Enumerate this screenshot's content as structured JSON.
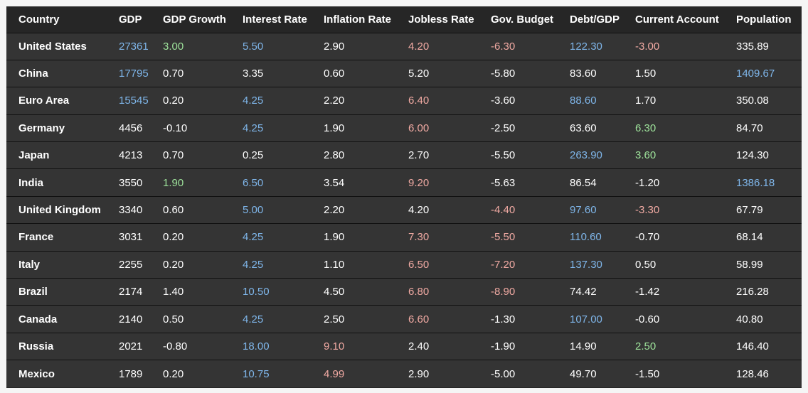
{
  "colors": {
    "blue": "#7fb6ea",
    "green": "#9ee39b",
    "red": "#f1aaa3",
    "white": "#ffffff"
  },
  "table": {
    "headers": [
      "Country",
      "GDP",
      "GDP Growth",
      "Interest Rate",
      "Inflation Rate",
      "Jobless Rate",
      "Gov. Budget",
      "Debt/GDP",
      "Current Account",
      "Population"
    ],
    "rows": [
      [
        {
          "v": "United States",
          "c": "white"
        },
        {
          "v": "27361",
          "c": "blue"
        },
        {
          "v": "3.00",
          "c": "green"
        },
        {
          "v": "5.50",
          "c": "blue"
        },
        {
          "v": "2.90",
          "c": "white"
        },
        {
          "v": "4.20",
          "c": "red"
        },
        {
          "v": "-6.30",
          "c": "red"
        },
        {
          "v": "122.30",
          "c": "blue"
        },
        {
          "v": "-3.00",
          "c": "red"
        },
        {
          "v": "335.89",
          "c": "white"
        }
      ],
      [
        {
          "v": "China",
          "c": "white"
        },
        {
          "v": "17795",
          "c": "blue"
        },
        {
          "v": "0.70",
          "c": "white"
        },
        {
          "v": "3.35",
          "c": "white"
        },
        {
          "v": "0.60",
          "c": "white"
        },
        {
          "v": "5.20",
          "c": "white"
        },
        {
          "v": "-5.80",
          "c": "white"
        },
        {
          "v": "83.60",
          "c": "white"
        },
        {
          "v": "1.50",
          "c": "white"
        },
        {
          "v": "1409.67",
          "c": "blue"
        }
      ],
      [
        {
          "v": "Euro Area",
          "c": "white"
        },
        {
          "v": "15545",
          "c": "blue"
        },
        {
          "v": "0.20",
          "c": "white"
        },
        {
          "v": "4.25",
          "c": "blue"
        },
        {
          "v": "2.20",
          "c": "white"
        },
        {
          "v": "6.40",
          "c": "red"
        },
        {
          "v": "-3.60",
          "c": "white"
        },
        {
          "v": "88.60",
          "c": "blue"
        },
        {
          "v": "1.70",
          "c": "white"
        },
        {
          "v": "350.08",
          "c": "white"
        }
      ],
      [
        {
          "v": "Germany",
          "c": "white"
        },
        {
          "v": "4456",
          "c": "white"
        },
        {
          "v": "-0.10",
          "c": "white"
        },
        {
          "v": "4.25",
          "c": "blue"
        },
        {
          "v": "1.90",
          "c": "white"
        },
        {
          "v": "6.00",
          "c": "red"
        },
        {
          "v": "-2.50",
          "c": "white"
        },
        {
          "v": "63.60",
          "c": "white"
        },
        {
          "v": "6.30",
          "c": "green"
        },
        {
          "v": "84.70",
          "c": "white"
        }
      ],
      [
        {
          "v": "Japan",
          "c": "white"
        },
        {
          "v": "4213",
          "c": "white"
        },
        {
          "v": "0.70",
          "c": "white"
        },
        {
          "v": "0.25",
          "c": "white"
        },
        {
          "v": "2.80",
          "c": "white"
        },
        {
          "v": "2.70",
          "c": "white"
        },
        {
          "v": "-5.50",
          "c": "white"
        },
        {
          "v": "263.90",
          "c": "blue"
        },
        {
          "v": "3.60",
          "c": "green"
        },
        {
          "v": "124.30",
          "c": "white"
        }
      ],
      [
        {
          "v": "India",
          "c": "white"
        },
        {
          "v": "3550",
          "c": "white"
        },
        {
          "v": "1.90",
          "c": "green"
        },
        {
          "v": "6.50",
          "c": "blue"
        },
        {
          "v": "3.54",
          "c": "white"
        },
        {
          "v": "9.20",
          "c": "red"
        },
        {
          "v": "-5.63",
          "c": "white"
        },
        {
          "v": "86.54",
          "c": "white"
        },
        {
          "v": "-1.20",
          "c": "white"
        },
        {
          "v": "1386.18",
          "c": "blue"
        }
      ],
      [
        {
          "v": "United Kingdom",
          "c": "white"
        },
        {
          "v": "3340",
          "c": "white"
        },
        {
          "v": "0.60",
          "c": "white"
        },
        {
          "v": "5.00",
          "c": "blue"
        },
        {
          "v": "2.20",
          "c": "white"
        },
        {
          "v": "4.20",
          "c": "white"
        },
        {
          "v": "-4.40",
          "c": "red"
        },
        {
          "v": "97.60",
          "c": "blue"
        },
        {
          "v": "-3.30",
          "c": "red"
        },
        {
          "v": "67.79",
          "c": "white"
        }
      ],
      [
        {
          "v": "France",
          "c": "white"
        },
        {
          "v": "3031",
          "c": "white"
        },
        {
          "v": "0.20",
          "c": "white"
        },
        {
          "v": "4.25",
          "c": "blue"
        },
        {
          "v": "1.90",
          "c": "white"
        },
        {
          "v": "7.30",
          "c": "red"
        },
        {
          "v": "-5.50",
          "c": "red"
        },
        {
          "v": "110.60",
          "c": "blue"
        },
        {
          "v": "-0.70",
          "c": "white"
        },
        {
          "v": "68.14",
          "c": "white"
        }
      ],
      [
        {
          "v": "Italy",
          "c": "white"
        },
        {
          "v": "2255",
          "c": "white"
        },
        {
          "v": "0.20",
          "c": "white"
        },
        {
          "v": "4.25",
          "c": "blue"
        },
        {
          "v": "1.10",
          "c": "white"
        },
        {
          "v": "6.50",
          "c": "red"
        },
        {
          "v": "-7.20",
          "c": "red"
        },
        {
          "v": "137.30",
          "c": "blue"
        },
        {
          "v": "0.50",
          "c": "white"
        },
        {
          "v": "58.99",
          "c": "white"
        }
      ],
      [
        {
          "v": "Brazil",
          "c": "white"
        },
        {
          "v": "2174",
          "c": "white"
        },
        {
          "v": "1.40",
          "c": "white"
        },
        {
          "v": "10.50",
          "c": "blue"
        },
        {
          "v": "4.50",
          "c": "white"
        },
        {
          "v": "6.80",
          "c": "red"
        },
        {
          "v": "-8.90",
          "c": "red"
        },
        {
          "v": "74.42",
          "c": "white"
        },
        {
          "v": "-1.42",
          "c": "white"
        },
        {
          "v": "216.28",
          "c": "white"
        }
      ],
      [
        {
          "v": "Canada",
          "c": "white"
        },
        {
          "v": "2140",
          "c": "white"
        },
        {
          "v": "0.50",
          "c": "white"
        },
        {
          "v": "4.25",
          "c": "blue"
        },
        {
          "v": "2.50",
          "c": "white"
        },
        {
          "v": "6.60",
          "c": "red"
        },
        {
          "v": "-1.30",
          "c": "white"
        },
        {
          "v": "107.00",
          "c": "blue"
        },
        {
          "v": "-0.60",
          "c": "white"
        },
        {
          "v": "40.80",
          "c": "white"
        }
      ],
      [
        {
          "v": "Russia",
          "c": "white"
        },
        {
          "v": "2021",
          "c": "white"
        },
        {
          "v": "-0.80",
          "c": "white"
        },
        {
          "v": "18.00",
          "c": "blue"
        },
        {
          "v": "9.10",
          "c": "red"
        },
        {
          "v": "2.40",
          "c": "white"
        },
        {
          "v": "-1.90",
          "c": "white"
        },
        {
          "v": "14.90",
          "c": "white"
        },
        {
          "v": "2.50",
          "c": "green"
        },
        {
          "v": "146.40",
          "c": "white"
        }
      ],
      [
        {
          "v": "Mexico",
          "c": "white"
        },
        {
          "v": "1789",
          "c": "white"
        },
        {
          "v": "0.20",
          "c": "white"
        },
        {
          "v": "10.75",
          "c": "blue"
        },
        {
          "v": "4.99",
          "c": "red"
        },
        {
          "v": "2.90",
          "c": "white"
        },
        {
          "v": "-5.00",
          "c": "white"
        },
        {
          "v": "49.70",
          "c": "white"
        },
        {
          "v": "-1.50",
          "c": "white"
        },
        {
          "v": "128.46",
          "c": "white"
        }
      ]
    ]
  }
}
